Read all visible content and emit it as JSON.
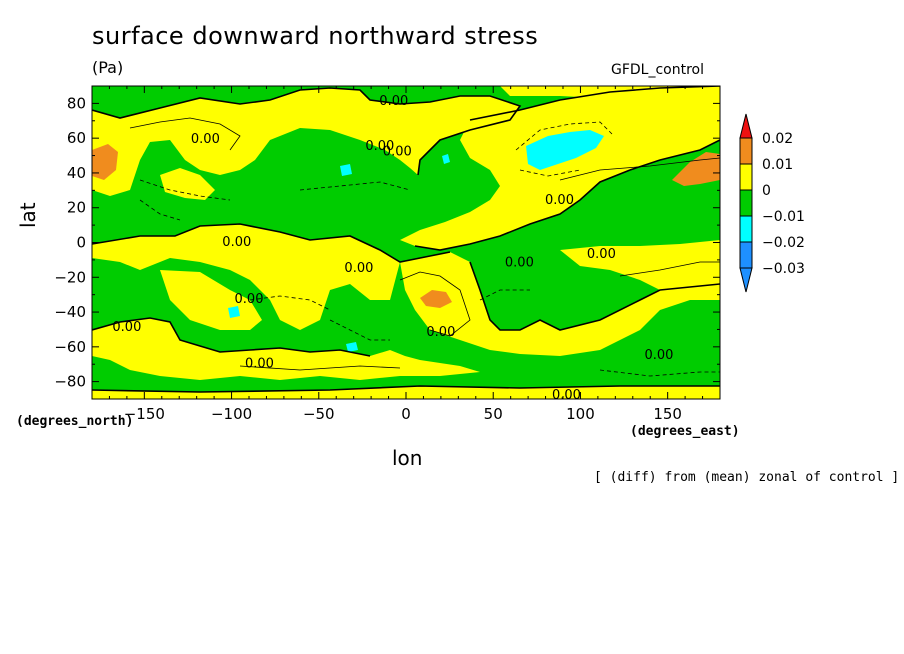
{
  "chart_data": {
    "type": "heatmap",
    "title": "surface downward northward stress",
    "units": "(Pa)",
    "source_label": "GFDL_control",
    "xlabel": "lon",
    "ylabel": "lat",
    "x_units": "(degrees_east)",
    "y_units": "(degrees_north)",
    "note": "[ (diff) from (mean) zonal of control ]",
    "xlim": [
      -180,
      180
    ],
    "ylim": [
      -90,
      90
    ],
    "x_ticks": [
      {
        "value": -150,
        "label": "−150"
      },
      {
        "value": -100,
        "label": "−100"
      },
      {
        "value": -50,
        "label": "−50"
      },
      {
        "value": 0,
        "label": "0"
      },
      {
        "value": 50,
        "label": "50"
      },
      {
        "value": 100,
        "label": "100"
      },
      {
        "value": 150,
        "label": "150"
      }
    ],
    "y_ticks": [
      {
        "value": 80,
        "label": "80"
      },
      {
        "value": 60,
        "label": "60"
      },
      {
        "value": 40,
        "label": "40"
      },
      {
        "value": 20,
        "label": "20"
      },
      {
        "value": 0,
        "label": "0"
      },
      {
        "value": -20,
        "label": "−20"
      },
      {
        "value": -40,
        "label": "−40"
      },
      {
        "value": -60,
        "label": "−60"
      },
      {
        "value": -80,
        "label": "−80"
      }
    ],
    "colorbar": {
      "levels": [
        {
          "label": "0.02",
          "color": "#f08c1e"
        },
        {
          "label": "0.01",
          "color": "#ffff00"
        },
        {
          "label": "0",
          "color": "#00cc00"
        },
        {
          "label": "−0.01",
          "color": "#00ffff"
        },
        {
          "label": "−0.02",
          "color": "#1e90ff"
        },
        {
          "label": "−0.03",
          "color": null
        }
      ],
      "over_color": "#ee1111",
      "under_color": "#1e90ff"
    },
    "colors": {
      "green": "#00cc00",
      "yellow": "#ffff00",
      "orange": "#f08c1e",
      "cyan": "#00ffff"
    },
    "contour_labels": [
      {
        "text": "0.00",
        "lon": -7,
        "lat": 82
      },
      {
        "text": "0.00",
        "lon": -115,
        "lat": 60
      },
      {
        "text": "0.00",
        "lon": -15,
        "lat": 56
      },
      {
        "text": "0.00",
        "lon": -5,
        "lat": 53
      },
      {
        "text": "0.00",
        "lon": 88,
        "lat": 25
      },
      {
        "text": "0.00",
        "lon": -97,
        "lat": 1
      },
      {
        "text": "0.00",
        "lon": -27,
        "lat": -14
      },
      {
        "text": "0.00",
        "lon": 65,
        "lat": -11
      },
      {
        "text": "0.00",
        "lon": 112,
        "lat": -6
      },
      {
        "text": "0.00",
        "lon": -90,
        "lat": -32
      },
      {
        "text": "0.00",
        "lon": -160,
        "lat": -48
      },
      {
        "text": "0.00",
        "lon": 20,
        "lat": -51
      },
      {
        "text": "0.00",
        "lon": -84,
        "lat": -69
      },
      {
        "text": "0.00",
        "lon": 145,
        "lat": -64
      },
      {
        "text": "0.00",
        "lon": 92,
        "lat": -87
      }
    ]
  }
}
